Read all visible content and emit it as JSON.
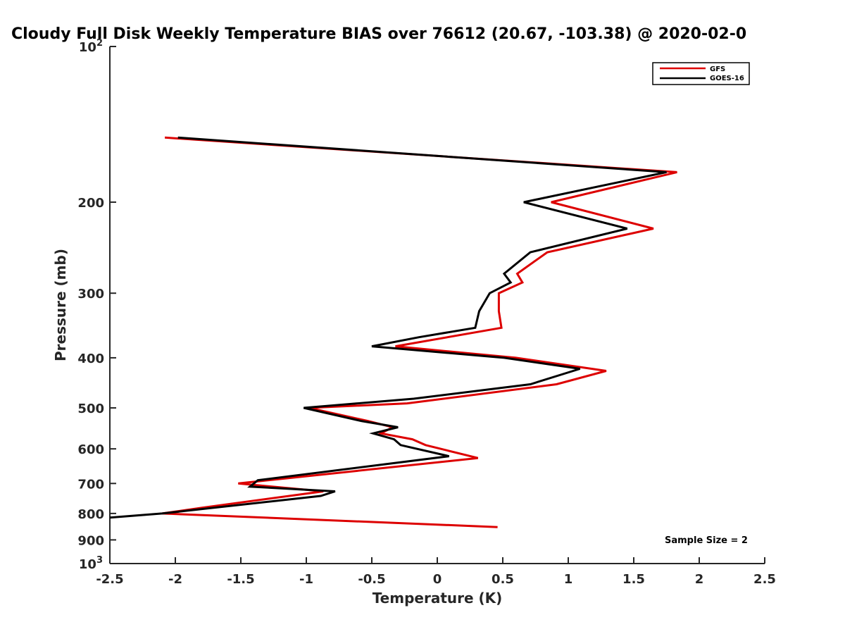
{
  "chart_data": {
    "type": "line",
    "title": "Cloudy Full Disk Weekly Temperature BIAS over 76612 (20.67, -103.38) @ 2020-02-0",
    "xlabel": "Temperature (K)",
    "ylabel": "Pressure (mb)",
    "xlim": [
      -2.5,
      2.5
    ],
    "ylim": [
      100,
      1000
    ],
    "y_scale": "log",
    "y_reversed": true,
    "grid": false,
    "legend_position": "top-right",
    "x_ticks": [
      -2.5,
      -2,
      -1.5,
      -1,
      -0.5,
      0,
      0.5,
      1,
      1.5,
      2,
      2.5
    ],
    "x_tick_labels": [
      "-2.5",
      "-2",
      "-1.5",
      "-1",
      "-0.5",
      "0",
      "0.5",
      "1",
      "1.5",
      "2",
      "2.5"
    ],
    "y_ticks": [
      200,
      300,
      400,
      500,
      600,
      700,
      800,
      900
    ],
    "y_tick_labels": [
      "200",
      "300",
      "400",
      "500",
      "600",
      "700",
      "800",
      "900"
    ],
    "y_tick_top": {
      "base": "10",
      "exp": "2"
    },
    "y_tick_bottom": {
      "base": "10",
      "exp": "3"
    },
    "annotation": "Sample Size = 2",
    "series": [
      {
        "name": "GFS",
        "color": "#dd0000",
        "points": [
          [
            -2.08,
            150
          ],
          [
            1.83,
            175
          ],
          [
            0.87,
            200
          ],
          [
            1.65,
            225
          ],
          [
            0.84,
            250
          ],
          [
            0.61,
            275
          ],
          [
            0.65,
            286
          ],
          [
            0.47,
            300
          ],
          [
            0.47,
            325
          ],
          [
            0.49,
            350
          ],
          [
            -0.32,
            380
          ],
          [
            0.6,
            400
          ],
          [
            1.29,
            424
          ],
          [
            0.91,
            450
          ],
          [
            -0.23,
            490
          ],
          [
            -0.98,
            500
          ],
          [
            -0.53,
            530
          ],
          [
            -0.34,
            545
          ],
          [
            -0.43,
            560
          ],
          [
            -0.19,
            575
          ],
          [
            -0.09,
            590
          ],
          [
            0.31,
            625
          ],
          [
            -1.52,
            700
          ],
          [
            -0.87,
            725
          ],
          [
            -1.8,
            780
          ],
          [
            -2.1,
            800
          ],
          [
            0.46,
            850
          ]
        ]
      },
      {
        "name": "GOES-16",
        "color": "#000000",
        "points": [
          [
            -1.98,
            150
          ],
          [
            1.75,
            175
          ],
          [
            0.66,
            200
          ],
          [
            1.45,
            225
          ],
          [
            0.71,
            250
          ],
          [
            0.51,
            275
          ],
          [
            0.56,
            286
          ],
          [
            0.4,
            300
          ],
          [
            0.32,
            325
          ],
          [
            0.29,
            350
          ],
          [
            -0.14,
            365
          ],
          [
            -0.5,
            380
          ],
          [
            0.51,
            400
          ],
          [
            1.09,
            420
          ],
          [
            0.71,
            450
          ],
          [
            -0.18,
            480
          ],
          [
            -1.02,
            500
          ],
          [
            -0.58,
            530
          ],
          [
            -0.3,
            545
          ],
          [
            -0.49,
            560
          ],
          [
            -0.33,
            575
          ],
          [
            -0.28,
            590
          ],
          [
            0.09,
            620
          ],
          [
            -1.37,
            690
          ],
          [
            -1.43,
            710
          ],
          [
            -0.78,
            725
          ],
          [
            -0.89,
            740
          ],
          [
            -2.1,
            800
          ],
          [
            -2.5,
            815
          ]
        ]
      }
    ]
  }
}
